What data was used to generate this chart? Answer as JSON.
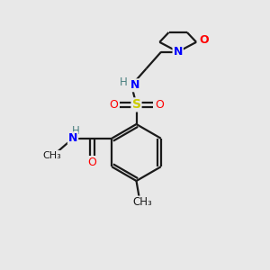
{
  "background_color": "#e8e8e8",
  "bond_color": "#1a1a1a",
  "atom_colors": {
    "N": "#0000ff",
    "O": "#ff0000",
    "S": "#cccc00",
    "C": "#1a1a1a",
    "H": "#4a8080"
  },
  "figsize": [
    3.0,
    3.0
  ],
  "dpi": 100,
  "lw": 1.6
}
